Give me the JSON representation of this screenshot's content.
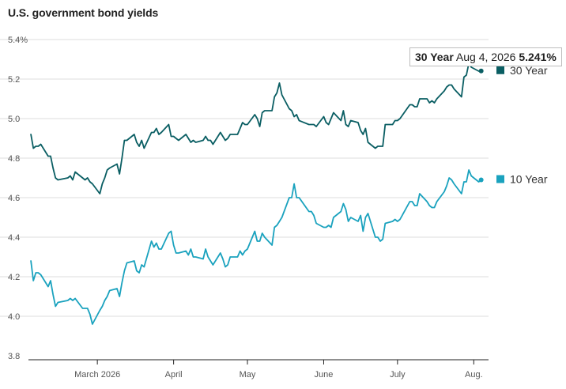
{
  "title": "U.S. government bond yields",
  "tooltip": {
    "series": "30 Year",
    "date": "Aug 4, 2026",
    "value": "5.241%"
  },
  "chart_data": {
    "type": "line",
    "title": "U.S. government bond yields",
    "xlabel": "",
    "ylabel": "",
    "ylim": [
      3.8,
      5.4
    ],
    "yticks": [
      "5.4%",
      "5.2",
      "5.0",
      "4.8",
      "4.6",
      "4.4",
      "4.2",
      "4.0",
      "3.8"
    ],
    "ytick_values": [
      5.4,
      5.2,
      5.0,
      4.8,
      4.6,
      4.4,
      4.2,
      4.0,
      3.8
    ],
    "xlim": [
      "2026-02-01",
      "2026-08-07"
    ],
    "xticks": [
      {
        "date": "2026-03-01",
        "label": "March 2026"
      },
      {
        "date": "2026-04-01",
        "label": "April"
      },
      {
        "date": "2026-05-01",
        "label": "May"
      },
      {
        "date": "2026-06-01",
        "label": "June"
      },
      {
        "date": "2026-07-01",
        "label": "July"
      },
      {
        "date": "2026-08-01",
        "label": "Aug."
      }
    ],
    "grid": true,
    "legend": "right",
    "colors": {
      "30 Year": "#0a5e63",
      "10 Year": "#1aa2be"
    },
    "series": [
      {
        "name": "30 Year",
        "color": "#0a5e63",
        "points": [
          [
            "2026-02-02",
            4.92
          ],
          [
            "2026-02-03",
            4.85
          ],
          [
            "2026-02-04",
            4.86
          ],
          [
            "2026-02-05",
            4.86
          ],
          [
            "2026-02-06",
            4.87
          ],
          [
            "2026-02-09",
            4.81
          ],
          [
            "2026-02-10",
            4.81
          ],
          [
            "2026-02-11",
            4.75
          ],
          [
            "2026-02-12",
            4.7
          ],
          [
            "2026-02-13",
            4.69
          ],
          [
            "2026-02-17",
            4.7
          ],
          [
            "2026-02-18",
            4.71
          ],
          [
            "2026-02-19",
            4.69
          ],
          [
            "2026-02-20",
            4.73
          ],
          [
            "2026-02-23",
            4.7
          ],
          [
            "2026-02-24",
            4.69
          ],
          [
            "2026-02-25",
            4.7
          ],
          [
            "2026-02-26",
            4.68
          ],
          [
            "2026-02-27",
            4.67
          ],
          [
            "2026-03-02",
            4.62
          ],
          [
            "2026-03-03",
            4.67
          ],
          [
            "2026-03-04",
            4.7
          ],
          [
            "2026-03-05",
            4.74
          ],
          [
            "2026-03-06",
            4.75
          ],
          [
            "2026-03-09",
            4.77
          ],
          [
            "2026-03-10",
            4.72
          ],
          [
            "2026-03-11",
            4.8
          ],
          [
            "2026-03-12",
            4.89
          ],
          [
            "2026-03-13",
            4.89
          ],
          [
            "2026-03-16",
            4.92
          ],
          [
            "2026-03-17",
            4.88
          ],
          [
            "2026-03-18",
            4.86
          ],
          [
            "2026-03-19",
            4.89
          ],
          [
            "2026-03-20",
            4.85
          ],
          [
            "2026-03-23",
            4.93
          ],
          [
            "2026-03-24",
            4.93
          ],
          [
            "2026-03-25",
            4.95
          ],
          [
            "2026-03-26",
            4.92
          ],
          [
            "2026-03-27",
            4.93
          ],
          [
            "2026-03-30",
            4.97
          ],
          [
            "2026-03-31",
            4.91
          ],
          [
            "2026-04-01",
            4.91
          ],
          [
            "2026-04-02",
            4.9
          ],
          [
            "2026-04-03",
            4.89
          ],
          [
            "2026-04-06",
            4.92
          ],
          [
            "2026-04-07",
            4.9
          ],
          [
            "2026-04-08",
            4.88
          ],
          [
            "2026-04-09",
            4.89
          ],
          [
            "2026-04-10",
            4.88
          ],
          [
            "2026-04-13",
            4.89
          ],
          [
            "2026-04-14",
            4.91
          ],
          [
            "2026-04-15",
            4.89
          ],
          [
            "2026-04-16",
            4.89
          ],
          [
            "2026-04-17",
            4.87
          ],
          [
            "2026-04-20",
            4.93
          ],
          [
            "2026-04-21",
            4.91
          ],
          [
            "2026-04-22",
            4.89
          ],
          [
            "2026-04-23",
            4.9
          ],
          [
            "2026-04-24",
            4.92
          ],
          [
            "2026-04-27",
            4.92
          ],
          [
            "2026-04-28",
            4.95
          ],
          [
            "2026-04-29",
            4.98
          ],
          [
            "2026-04-30",
            4.97
          ],
          [
            "2026-05-01",
            4.97
          ],
          [
            "2026-05-04",
            5.02
          ],
          [
            "2026-05-05",
            5.0
          ],
          [
            "2026-05-06",
            4.96
          ],
          [
            "2026-05-07",
            5.03
          ],
          [
            "2026-05-08",
            5.04
          ],
          [
            "2026-05-11",
            5.04
          ],
          [
            "2026-05-12",
            5.11
          ],
          [
            "2026-05-13",
            5.13
          ],
          [
            "2026-05-14",
            5.18
          ],
          [
            "2026-05-15",
            5.12
          ],
          [
            "2026-05-18",
            5.05
          ],
          [
            "2026-05-19",
            5.04
          ],
          [
            "2026-05-20",
            5.01
          ],
          [
            "2026-05-21",
            5.02
          ],
          [
            "2026-05-22",
            4.99
          ],
          [
            "2026-05-26",
            4.97
          ],
          [
            "2026-05-27",
            4.97
          ],
          [
            "2026-05-28",
            4.97
          ],
          [
            "2026-05-29",
            4.96
          ],
          [
            "2026-06-01",
            5.01
          ],
          [
            "2026-06-02",
            4.98
          ],
          [
            "2026-06-03",
            4.97
          ],
          [
            "2026-06-04",
            5.0
          ],
          [
            "2026-06-05",
            5.03
          ],
          [
            "2026-06-08",
            4.99
          ],
          [
            "2026-06-09",
            5.04
          ],
          [
            "2026-06-10",
            4.97
          ],
          [
            "2026-06-11",
            4.96
          ],
          [
            "2026-06-12",
            4.99
          ],
          [
            "2026-06-15",
            4.98
          ],
          [
            "2026-06-16",
            4.94
          ],
          [
            "2026-06-17",
            4.92
          ],
          [
            "2026-06-18",
            4.95
          ],
          [
            "2026-06-19",
            4.88
          ],
          [
            "2026-06-22",
            4.85
          ],
          [
            "2026-06-23",
            4.86
          ],
          [
            "2026-06-24",
            4.86
          ],
          [
            "2026-06-25",
            4.86
          ],
          [
            "2026-06-26",
            4.97
          ],
          [
            "2026-06-29",
            4.97
          ],
          [
            "2026-06-30",
            4.99
          ],
          [
            "2026-07-01",
            4.99
          ],
          [
            "2026-07-02",
            5.0
          ],
          [
            "2026-07-06",
            5.07
          ],
          [
            "2026-07-07",
            5.07
          ],
          [
            "2026-07-08",
            5.06
          ],
          [
            "2026-07-09",
            5.06
          ],
          [
            "2026-07-10",
            5.1
          ],
          [
            "2026-07-13",
            5.1
          ],
          [
            "2026-07-14",
            5.08
          ],
          [
            "2026-07-15",
            5.09
          ],
          [
            "2026-07-16",
            5.08
          ],
          [
            "2026-07-17",
            5.1
          ],
          [
            "2026-07-20",
            5.14
          ],
          [
            "2026-07-21",
            5.16
          ],
          [
            "2026-07-22",
            5.17
          ],
          [
            "2026-07-23",
            5.17
          ],
          [
            "2026-07-24",
            5.15
          ],
          [
            "2026-07-27",
            5.11
          ],
          [
            "2026-07-28",
            5.21
          ],
          [
            "2026-07-29",
            5.22
          ],
          [
            "2026-07-30",
            5.28
          ],
          [
            "2026-07-31",
            5.26
          ],
          [
            "2026-08-03",
            5.24
          ],
          [
            "2026-08-04",
            5.241
          ]
        ]
      },
      {
        "name": "10 Year",
        "color": "#1aa2be",
        "points": [
          [
            "2026-02-02",
            4.28
          ],
          [
            "2026-02-03",
            4.18
          ],
          [
            "2026-02-04",
            4.22
          ],
          [
            "2026-02-05",
            4.22
          ],
          [
            "2026-02-06",
            4.21
          ],
          [
            "2026-02-09",
            4.15
          ],
          [
            "2026-02-10",
            4.18
          ],
          [
            "2026-02-11",
            4.11
          ],
          [
            "2026-02-12",
            4.05
          ],
          [
            "2026-02-13",
            4.07
          ],
          [
            "2026-02-17",
            4.08
          ],
          [
            "2026-02-18",
            4.09
          ],
          [
            "2026-02-19",
            4.08
          ],
          [
            "2026-02-20",
            4.09
          ],
          [
            "2026-02-23",
            4.04
          ],
          [
            "2026-02-24",
            4.04
          ],
          [
            "2026-02-25",
            4.04
          ],
          [
            "2026-02-26",
            4.01
          ],
          [
            "2026-02-27",
            3.96
          ],
          [
            "2026-03-02",
            4.03
          ],
          [
            "2026-03-03",
            4.05
          ],
          [
            "2026-03-04",
            4.08
          ],
          [
            "2026-03-05",
            4.1
          ],
          [
            "2026-03-06",
            4.13
          ],
          [
            "2026-03-09",
            4.14
          ],
          [
            "2026-03-10",
            4.1
          ],
          [
            "2026-03-11",
            4.17
          ],
          [
            "2026-03-12",
            4.23
          ],
          [
            "2026-03-13",
            4.27
          ],
          [
            "2026-03-16",
            4.28
          ],
          [
            "2026-03-17",
            4.23
          ],
          [
            "2026-03-18",
            4.22
          ],
          [
            "2026-03-19",
            4.26
          ],
          [
            "2026-03-20",
            4.25
          ],
          [
            "2026-03-23",
            4.38
          ],
          [
            "2026-03-24",
            4.35
          ],
          [
            "2026-03-25",
            4.37
          ],
          [
            "2026-03-26",
            4.34
          ],
          [
            "2026-03-27",
            4.34
          ],
          [
            "2026-03-30",
            4.42
          ],
          [
            "2026-03-31",
            4.43
          ],
          [
            "2026-04-01",
            4.36
          ],
          [
            "2026-04-02",
            4.32
          ],
          [
            "2026-04-03",
            4.32
          ],
          [
            "2026-04-06",
            4.33
          ],
          [
            "2026-04-07",
            4.31
          ],
          [
            "2026-04-08",
            4.34
          ],
          [
            "2026-04-09",
            4.3
          ],
          [
            "2026-04-10",
            4.3
          ],
          [
            "2026-04-13",
            4.29
          ],
          [
            "2026-04-14",
            4.34
          ],
          [
            "2026-04-15",
            4.3
          ],
          [
            "2026-04-16",
            4.28
          ],
          [
            "2026-04-17",
            4.26
          ],
          [
            "2026-04-20",
            4.32
          ],
          [
            "2026-04-21",
            4.29
          ],
          [
            "2026-04-22",
            4.25
          ],
          [
            "2026-04-23",
            4.26
          ],
          [
            "2026-04-24",
            4.3
          ],
          [
            "2026-04-27",
            4.3
          ],
          [
            "2026-04-28",
            4.33
          ],
          [
            "2026-04-29",
            4.31
          ],
          [
            "2026-04-30",
            4.33
          ],
          [
            "2026-05-01",
            4.34
          ],
          [
            "2026-05-04",
            4.43
          ],
          [
            "2026-05-05",
            4.38
          ],
          [
            "2026-05-06",
            4.38
          ],
          [
            "2026-05-07",
            4.42
          ],
          [
            "2026-05-08",
            4.4
          ],
          [
            "2026-05-11",
            4.36
          ],
          [
            "2026-05-12",
            4.45
          ],
          [
            "2026-05-13",
            4.46
          ],
          [
            "2026-05-14",
            4.48
          ],
          [
            "2026-05-15",
            4.5
          ],
          [
            "2026-05-18",
            4.6
          ],
          [
            "2026-05-19",
            4.6
          ],
          [
            "2026-05-20",
            4.67
          ],
          [
            "2026-05-21",
            4.6
          ],
          [
            "2026-05-22",
            4.6
          ],
          [
            "2026-05-26",
            4.53
          ],
          [
            "2026-05-27",
            4.53
          ],
          [
            "2026-05-28",
            4.51
          ],
          [
            "2026-05-29",
            4.47
          ],
          [
            "2026-06-01",
            4.45
          ],
          [
            "2026-06-02",
            4.45
          ],
          [
            "2026-06-03",
            4.46
          ],
          [
            "2026-06-04",
            4.45
          ],
          [
            "2026-06-05",
            4.5
          ],
          [
            "2026-06-08",
            4.53
          ],
          [
            "2026-06-09",
            4.57
          ],
          [
            "2026-06-10",
            4.54
          ],
          [
            "2026-06-11",
            4.48
          ],
          [
            "2026-06-12",
            4.5
          ],
          [
            "2026-06-15",
            4.48
          ],
          [
            "2026-06-16",
            4.51
          ],
          [
            "2026-06-17",
            4.43
          ],
          [
            "2026-06-18",
            4.5
          ],
          [
            "2026-06-19",
            4.52
          ],
          [
            "2026-06-22",
            4.4
          ],
          [
            "2026-06-23",
            4.4
          ],
          [
            "2026-06-24",
            4.38
          ],
          [
            "2026-06-25",
            4.39
          ],
          [
            "2026-06-26",
            4.47
          ],
          [
            "2026-06-29",
            4.48
          ],
          [
            "2026-06-30",
            4.49
          ],
          [
            "2026-07-01",
            4.48
          ],
          [
            "2026-07-02",
            4.49
          ],
          [
            "2026-07-06",
            4.58
          ],
          [
            "2026-07-07",
            4.58
          ],
          [
            "2026-07-08",
            4.56
          ],
          [
            "2026-07-09",
            4.56
          ],
          [
            "2026-07-10",
            4.62
          ],
          [
            "2026-07-13",
            4.58
          ],
          [
            "2026-07-14",
            4.56
          ],
          [
            "2026-07-15",
            4.55
          ],
          [
            "2026-07-16",
            4.55
          ],
          [
            "2026-07-17",
            4.58
          ],
          [
            "2026-07-20",
            4.63
          ],
          [
            "2026-07-21",
            4.66
          ],
          [
            "2026-07-22",
            4.7
          ],
          [
            "2026-07-23",
            4.69
          ],
          [
            "2026-07-24",
            4.67
          ],
          [
            "2026-07-27",
            4.62
          ],
          [
            "2026-07-28",
            4.68
          ],
          [
            "2026-07-29",
            4.68
          ],
          [
            "2026-07-30",
            4.74
          ],
          [
            "2026-07-31",
            4.71
          ],
          [
            "2026-08-03",
            4.68
          ],
          [
            "2026-08-04",
            4.69
          ]
        ]
      }
    ]
  }
}
